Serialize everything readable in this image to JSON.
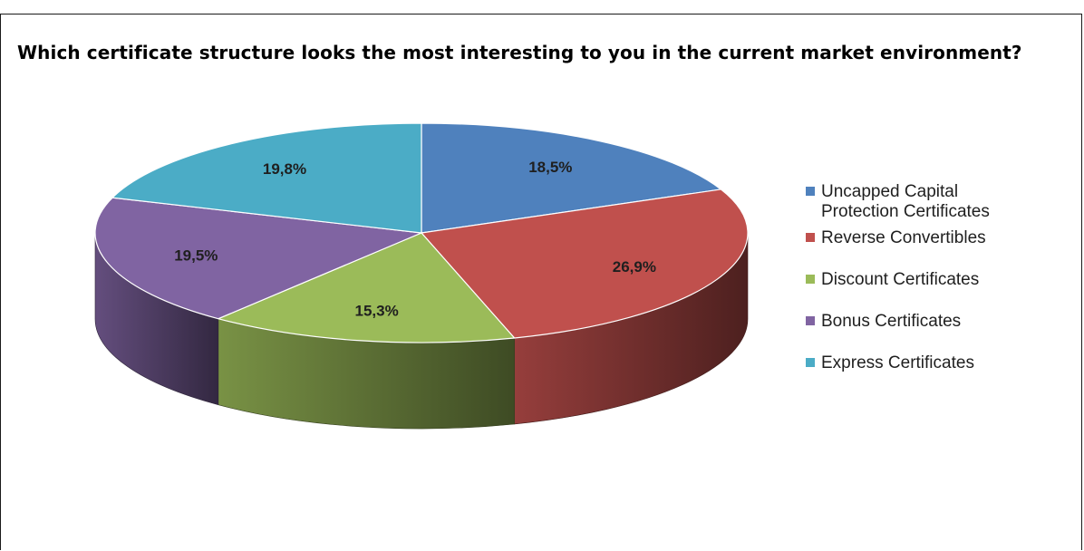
{
  "question": "Which certificate structure looks the most interesting to you in the current market environment?",
  "chart_data": {
    "type": "pie",
    "title": "",
    "slices": [
      {
        "label_lines": [
          "Uncapped Capital",
          "Protection Certificates"
        ],
        "value": 18.5,
        "value_label": "18,5%",
        "color": "#4f81bd"
      },
      {
        "label_lines": [
          "Reverse Convertibles"
        ],
        "value": 26.9,
        "value_label": "26,9%",
        "color": "#c0504d"
      },
      {
        "label_lines": [
          "Discount Certificates"
        ],
        "value": 15.3,
        "value_label": "15,3%",
        "color": "#9bbb59"
      },
      {
        "label_lines": [
          "Bonus Certificates"
        ],
        "value": 19.5,
        "value_label": "19,5%",
        "color": "#8064a2"
      },
      {
        "label_lines": [
          "Express Certificates"
        ],
        "value": 19.8,
        "value_label": "19,8%",
        "color": "#4bacc6"
      }
    ],
    "start": "12 o'clock",
    "direction": "clockwise",
    "style": "3d-tilted",
    "legend_position": "right"
  }
}
